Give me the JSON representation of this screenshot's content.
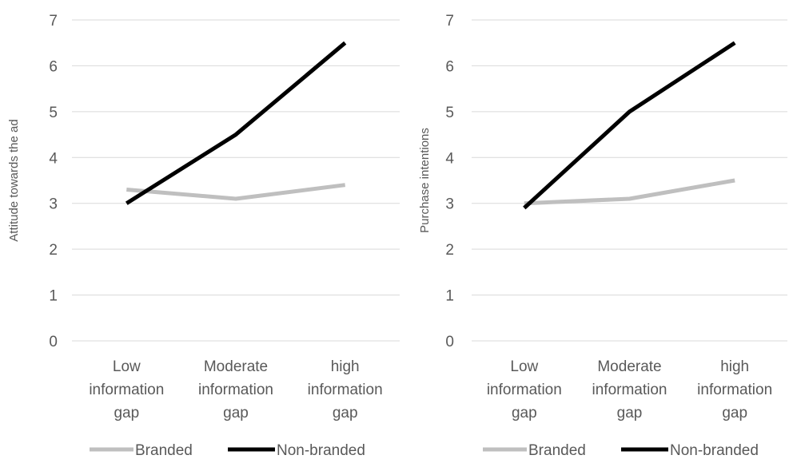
{
  "chart_data": [
    {
      "type": "line",
      "title": "",
      "xlabel": "",
      "ylabel": "Attitude towards the ad",
      "ylim": [
        0,
        7
      ],
      "yticks": [
        "0",
        "1",
        "2",
        "3",
        "4",
        "5",
        "6",
        "7"
      ],
      "categories": [
        [
          "Low",
          "information",
          "gap"
        ],
        [
          "Moderate",
          "information",
          "gap"
        ],
        [
          "high",
          "information",
          "gap"
        ]
      ],
      "grid": true,
      "legend_position": "bottom",
      "series": [
        {
          "name": "Branded",
          "color": "#bfbfbf",
          "values": [
            3.3,
            3.1,
            3.4
          ]
        },
        {
          "name": "Non-branded",
          "color": "#000000",
          "values": [
            3.0,
            4.5,
            6.5
          ]
        }
      ]
    },
    {
      "type": "line",
      "title": "",
      "xlabel": "",
      "ylabel": "Purchase intentions",
      "ylim": [
        0,
        7
      ],
      "yticks": [
        "0",
        "1",
        "2",
        "3",
        "4",
        "5",
        "6",
        "7"
      ],
      "categories": [
        [
          "Low",
          "information",
          "gap"
        ],
        [
          "Moderate",
          "information",
          "gap"
        ],
        [
          "high",
          "information",
          "gap"
        ]
      ],
      "grid": true,
      "legend_position": "bottom",
      "series": [
        {
          "name": "Branded",
          "color": "#bfbfbf",
          "values": [
            3.0,
            3.1,
            3.5
          ]
        },
        {
          "name": "Non-branded",
          "color": "#000000",
          "values": [
            2.9,
            5.0,
            6.5
          ]
        }
      ]
    }
  ]
}
